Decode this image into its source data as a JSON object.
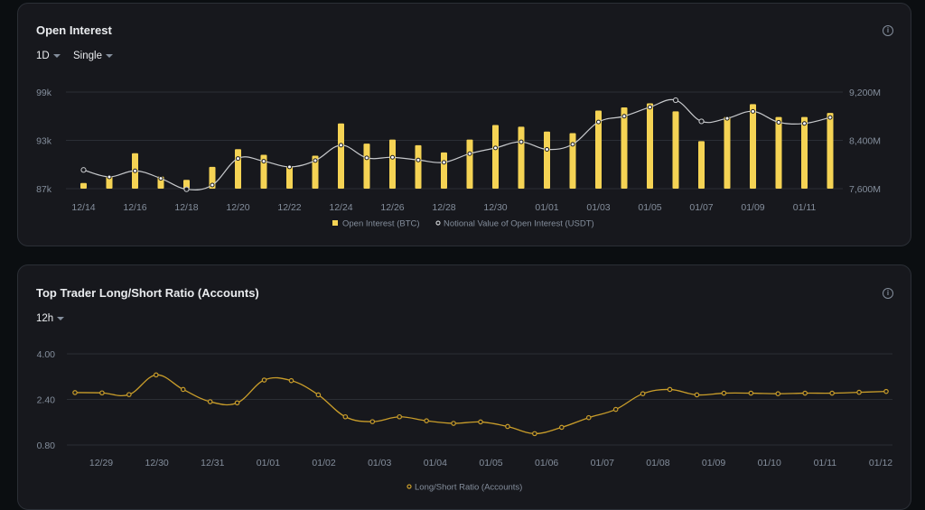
{
  "open_interest": {
    "title": "Open Interest",
    "period": "1D",
    "mode": "Single",
    "info_icon": "info-icon",
    "chart_data": {
      "type": "bar",
      "categories": [
        "12/14",
        "12/15",
        "12/16",
        "12/17",
        "12/18",
        "12/19",
        "12/20",
        "12/21",
        "12/22",
        "12/23",
        "12/24",
        "12/25",
        "12/26",
        "12/27",
        "12/28",
        "12/29",
        "12/30",
        "12/31",
        "01/01",
        "01/02",
        "01/03",
        "01/04",
        "01/05",
        "01/06",
        "01/07",
        "01/08",
        "01/09",
        "01/10",
        "01/11",
        "01/12"
      ],
      "x_tick_labels": [
        "12/14",
        "12/16",
        "12/18",
        "12/20",
        "12/22",
        "12/24",
        "12/26",
        "12/28",
        "12/30",
        "01/01",
        "01/03",
        "01/05",
        "01/07",
        "01/09",
        "01/11"
      ],
      "series": [
        {
          "name": "Open Interest (BTC)",
          "type": "bar",
          "axis": "left",
          "color": "#f5d354",
          "values": [
            87.7,
            88.5,
            91.4,
            88.5,
            88.1,
            89.7,
            91.9,
            91.2,
            89.7,
            91.1,
            95.1,
            92.6,
            93.1,
            92.4,
            91.5,
            93.1,
            94.9,
            94.7,
            94.1,
            93.9,
            96.7,
            97.1,
            97.6,
            96.6,
            92.9,
            95.9,
            97.5,
            95.9,
            95.9,
            96.4
          ]
        },
        {
          "name": "Notional Value of Open Interest (USDT)",
          "type": "line",
          "axis": "right",
          "color": "#c7c9cc",
          "values": [
            7910,
            7795,
            7895,
            7770,
            7590,
            7660,
            8100,
            8055,
            7960,
            8065,
            8320,
            8110,
            8120,
            8075,
            8035,
            8180,
            8275,
            8375,
            8250,
            8335,
            8705,
            8800,
            8950,
            9065,
            8715,
            8765,
            8880,
            8700,
            8680,
            8780
          ]
        }
      ],
      "left_axis": {
        "ylim": [
          87,
          99
        ],
        "ticks": [
          "87k",
          "93k",
          "99k"
        ],
        "unit": "k"
      },
      "right_axis": {
        "ylim": [
          7600,
          9200
        ],
        "ticks": [
          "7,600M",
          "8,400M",
          "9,200M"
        ],
        "unit": "M"
      },
      "grid": true,
      "legend_placement": "bottom"
    }
  },
  "long_short": {
    "title": "Top Trader Long/Short Ratio (Accounts)",
    "period": "12h",
    "info_icon": "info-icon",
    "chart_data": {
      "type": "line",
      "x_tick_labels": [
        "12/29",
        "12/30",
        "12/31",
        "01/01",
        "01/02",
        "01/03",
        "01/04",
        "01/05",
        "01/06",
        "01/07",
        "01/08",
        "01/09",
        "01/10",
        "01/11",
        "01/12"
      ],
      "series": [
        {
          "name": "Long/Short Ratio (Accounts)",
          "color": "#c99d2a",
          "values": [
            2.64,
            2.63,
            2.57,
            3.26,
            2.75,
            2.32,
            2.28,
            3.08,
            3.06,
            2.56,
            1.79,
            1.62,
            1.79,
            1.65,
            1.56,
            1.61,
            1.45,
            1.2,
            1.42,
            1.76,
            2.05,
            2.6,
            2.75,
            2.56,
            2.62,
            2.62,
            2.6,
            2.62,
            2.62,
            2.65,
            2.68
          ]
        }
      ],
      "ylim": [
        0.8,
        4.0
      ],
      "y_ticks": [
        "0.80",
        "2.40",
        "4.00"
      ],
      "grid": true,
      "legend_placement": "bottom"
    }
  }
}
